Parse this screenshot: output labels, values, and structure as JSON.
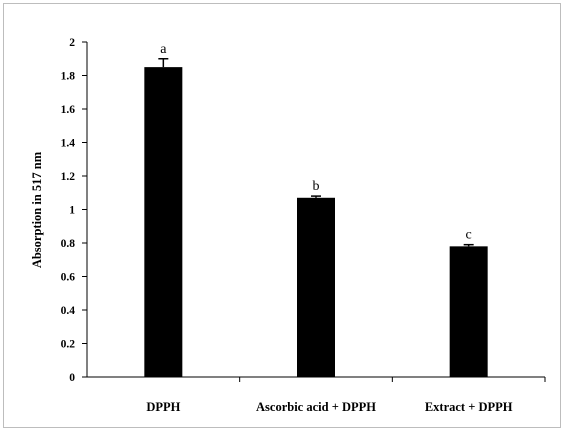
{
  "chart_data": {
    "type": "bar",
    "title": "",
    "xlabel": "",
    "ylabel": "Absorption in 517 nm",
    "ylim": [
      0,
      2
    ],
    "y_ticks": [
      "0",
      "0.2",
      "0.4",
      "0.6",
      "0.8",
      "1",
      "1.2",
      "1.4",
      "1.6",
      "1.8",
      "2"
    ],
    "categories": [
      "DPPH",
      "Ascorbic acid + DPPH",
      "Extract + DPPH"
    ],
    "values": [
      1.85,
      1.07,
      0.78
    ],
    "errors": [
      0.05,
      0.01,
      0.01
    ],
    "significance_labels": [
      "a",
      "b",
      "c"
    ],
    "bar_color": "#000000",
    "grid": false,
    "legend": false
  }
}
